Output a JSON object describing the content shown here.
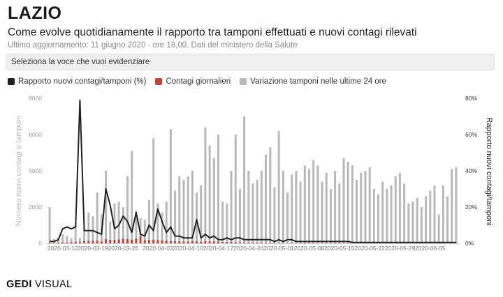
{
  "header": {
    "title": "LAZIO",
    "subtitle": "Come evolve quotidianamente il rapporto tra tamponi effettuati e nuovi contagi rilevati",
    "updated": "Ultimo aggiornamento: 11 giugno 2020 - ore 18,00. Dati del ministero della Salute"
  },
  "selector": {
    "label": "Seleziona la voce che vuoi evidenziare"
  },
  "legend": [
    {
      "label": "Rapporto nuovi contagi/tamponi (%)",
      "color": "#222222"
    },
    {
      "label": "Contagi giornalieri",
      "color": "#c0443a"
    },
    {
      "label": "Variazione tamponi nelle ultime 24 ore",
      "color": "#b8b8b8"
    }
  ],
  "brand": {
    "bold": "GEDI",
    "light": "VISUAL"
  },
  "chart_data": {
    "type": "bar",
    "title": "",
    "ylabel": "Numero nuovi contagi e tamponi",
    "y2label": "Rapporto nuovi contagi/tamponi",
    "ylim": [
      0,
      8000
    ],
    "y2lim": [
      0,
      80
    ],
    "yticks": [
      "0",
      "2000",
      "4000",
      "6000",
      "8000"
    ],
    "y2ticks": [
      "0%",
      "20%",
      "40%",
      "60%",
      "80%"
    ],
    "xtick_labels": [
      "2020-03-12",
      "2020-03-19",
      "2020-03-26",
      "2020-04-03",
      "2020-04-10",
      "2020-04-17",
      "2020-04-24",
      "2020-05-01",
      "2020-05-08",
      "2020-05-15",
      "2020-05-22",
      "2020-05-29",
      "2020-06-05"
    ],
    "grid": false,
    "legend_position": "top-left",
    "x": [
      "2020-03-09",
      "2020-03-10",
      "2020-03-11",
      "2020-03-12",
      "2020-03-13",
      "2020-03-14",
      "2020-03-15",
      "2020-03-16",
      "2020-03-17",
      "2020-03-18",
      "2020-03-19",
      "2020-03-20",
      "2020-03-21",
      "2020-03-22",
      "2020-03-23",
      "2020-03-24",
      "2020-03-25",
      "2020-03-26",
      "2020-03-27",
      "2020-03-28",
      "2020-03-29",
      "2020-03-30",
      "2020-03-31",
      "2020-04-01",
      "2020-04-02",
      "2020-04-03",
      "2020-04-04",
      "2020-04-05",
      "2020-04-06",
      "2020-04-07",
      "2020-04-08",
      "2020-04-09",
      "2020-04-10",
      "2020-04-11",
      "2020-04-12",
      "2020-04-13",
      "2020-04-14",
      "2020-04-15",
      "2020-04-16",
      "2020-04-17",
      "2020-04-18",
      "2020-04-19",
      "2020-04-20",
      "2020-04-21",
      "2020-04-22",
      "2020-04-23",
      "2020-04-24",
      "2020-04-25",
      "2020-04-26",
      "2020-04-27",
      "2020-04-28",
      "2020-04-29",
      "2020-04-30",
      "2020-05-01",
      "2020-05-02",
      "2020-05-03",
      "2020-05-04",
      "2020-05-05",
      "2020-05-06",
      "2020-05-07",
      "2020-05-08",
      "2020-05-09",
      "2020-05-10",
      "2020-05-11",
      "2020-05-12",
      "2020-05-13",
      "2020-05-14",
      "2020-05-15",
      "2020-05-16",
      "2020-05-17",
      "2020-05-18",
      "2020-05-19",
      "2020-05-20",
      "2020-05-21",
      "2020-05-22",
      "2020-05-23",
      "2020-05-24",
      "2020-05-25",
      "2020-05-26",
      "2020-05-27",
      "2020-05-28",
      "2020-05-29",
      "2020-05-30",
      "2020-05-31",
      "2020-06-01",
      "2020-06-02",
      "2020-06-03",
      "2020-06-04",
      "2020-06-05",
      "2020-06-06",
      "2020-06-07",
      "2020-06-08",
      "2020-06-09",
      "2020-06-10",
      "2020-06-11"
    ],
    "series": [
      {
        "name": "Variazione tamponi nelle ultime 24 ore",
        "type": "bar",
        "axis": "left",
        "color": "#b8b8b8",
        "values": [
          2000,
          250,
          300,
          500,
          400,
          300,
          1000,
          300,
          800,
          1700,
          1500,
          2800,
          1600,
          4000,
          1200,
          2200,
          2300,
          2000,
          3700,
          5100,
          1800,
          1400,
          1300,
          2400,
          5800,
          2200,
          1700,
          2300,
          6300,
          2900,
          3700,
          3500,
          3700,
          4000,
          2800,
          3200,
          6400,
          5400,
          4700,
          6000,
          2300,
          2200,
          4000,
          6000,
          3000,
          7000,
          4000,
          3300,
          3500,
          4000,
          4900,
          5300,
          3100,
          6200,
          4000,
          2800,
          3800,
          4000,
          3400,
          4300,
          4100,
          4600,
          4300,
          3400,
          3900,
          3000,
          4000,
          3300,
          4700,
          4500,
          4300,
          3500,
          3900,
          4000,
          4200,
          3000,
          2700,
          3400,
          3000,
          3200,
          3700,
          3900,
          3300,
          2200,
          2300,
          2500,
          2000,
          2600,
          2900,
          3200,
          1600,
          3200,
          2600,
          4100,
          4200
        ]
      },
      {
        "name": "Contagi giornalieri",
        "type": "bar",
        "axis": "left",
        "color": "#c0443a",
        "values": [
          40,
          30,
          40,
          50,
          40,
          60,
          80,
          60,
          120,
          130,
          140,
          150,
          100,
          230,
          180,
          190,
          210,
          250,
          230,
          200,
          260,
          400,
          170,
          190,
          200,
          180,
          160,
          140,
          130,
          120,
          110,
          100,
          90,
          130,
          110,
          80,
          120,
          110,
          100,
          90,
          80,
          70,
          80,
          60,
          50,
          40,
          45,
          40,
          35,
          30,
          30,
          25,
          28,
          25,
          22,
          20,
          20,
          18,
          16,
          15,
          14,
          15,
          12,
          10,
          10,
          12,
          10,
          9,
          10,
          8,
          8,
          7,
          8,
          7,
          6,
          6,
          5,
          6,
          5,
          5,
          4,
          5,
          4,
          4,
          5,
          4,
          3,
          4,
          3,
          4,
          5,
          4,
          3,
          4,
          4
        ]
      },
      {
        "name": "Rapporto nuovi contagi/tamponi (%)",
        "type": "line",
        "axis": "right",
        "color": "#222222",
        "values": [
          1,
          1,
          2,
          8,
          9,
          8,
          9,
          79,
          7,
          7,
          7,
          6,
          5,
          30,
          21,
          8,
          10,
          15,
          12,
          6,
          17,
          5,
          4,
          10,
          7,
          19,
          12,
          6,
          9,
          4,
          4,
          3,
          3,
          3,
          13,
          3,
          5,
          3,
          4,
          2,
          2,
          3,
          2,
          3,
          3,
          2,
          2,
          2,
          2,
          2,
          2,
          2,
          1,
          2,
          1,
          2,
          2,
          1,
          1,
          1,
          1,
          1,
          1,
          1,
          1,
          1,
          1,
          1,
          1,
          1,
          0.5,
          0.5,
          0.5,
          0.5,
          0.5,
          0.5,
          0.5,
          0.5,
          0.5,
          0.5,
          0.5,
          0.5,
          0.5,
          0.5,
          0.5,
          0.5,
          0.5,
          0.5,
          0.5,
          0.5,
          0.5,
          0.5,
          0.5,
          0.5,
          0.5
        ]
      }
    ]
  }
}
